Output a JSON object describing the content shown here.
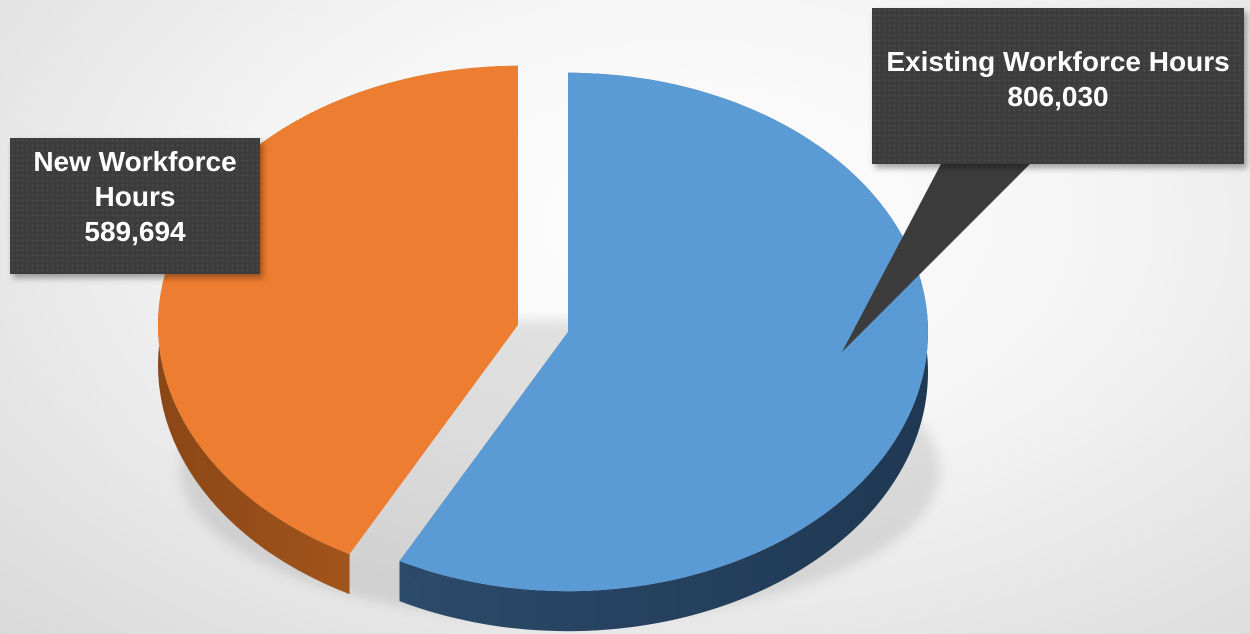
{
  "chart_data": {
    "type": "pie",
    "subtype": "3d-exploded",
    "slices": [
      {
        "label": "New Workforce Hours",
        "value": 589694,
        "value_text": "589,694",
        "color": "#ED7D31"
      },
      {
        "label": "Existing Workforce Hours",
        "value": 806030,
        "value_text": "806,030",
        "color": "#5B9BD5"
      }
    ],
    "title": "",
    "legend": "none",
    "data_labels": "callout"
  },
  "labels": {
    "new_line1": "New Workforce",
    "new_line2": "Hours",
    "new_value": "589,694",
    "existing_line1": "Existing Workforce Hours",
    "existing_value": "806,030"
  }
}
